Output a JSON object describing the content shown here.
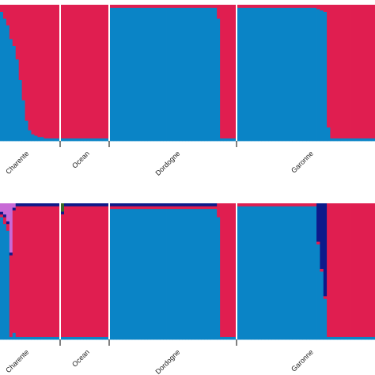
{
  "chart_data": [
    {
      "type": "bar",
      "stacked": true,
      "subtype": "admixture-structure-plot",
      "title": "",
      "xlabel": "",
      "ylabel": "",
      "ylim": [
        0,
        1
      ],
      "grid": false,
      "legend": "none",
      "groups": [
        {
          "label": "Charente",
          "n_individuals": 19
        },
        {
          "label": "Ocean",
          "n_individuals": 15
        },
        {
          "label": "Dordogne",
          "n_individuals": 40
        },
        {
          "label": "Garonne",
          "n_individuals": 40
        }
      ],
      "series": [
        {
          "color": "#0a84c6",
          "values": [
            0.95,
            0.9,
            0.85,
            0.75,
            0.7,
            0.6,
            0.45,
            0.3,
            0.15,
            0.08,
            0.05,
            0.04,
            0.03,
            0.03,
            0.02,
            0.02,
            0.02,
            0.02,
            0.02,
            0.02,
            0.02,
            0.02,
            0.02,
            0.02,
            0.02,
            0.02,
            0.02,
            0.02,
            0.02,
            0.02,
            0.02,
            0.02,
            0.02,
            0.02,
            0.98,
            0.98,
            0.98,
            0.98,
            0.98,
            0.98,
            0.98,
            0.98,
            0.98,
            0.98,
            0.98,
            0.98,
            0.98,
            0.98,
            0.98,
            0.98,
            0.98,
            0.98,
            0.98,
            0.98,
            0.98,
            0.98,
            0.98,
            0.98,
            0.98,
            0.98,
            0.98,
            0.98,
            0.98,
            0.98,
            0.98,
            0.98,
            0.98,
            0.98,
            0.9,
            0.02,
            0.02,
            0.02,
            0.02,
            0.02,
            0.98,
            0.98,
            0.98,
            0.98,
            0.98,
            0.98,
            0.98,
            0.98,
            0.98,
            0.98,
            0.98,
            0.98,
            0.98,
            0.98,
            0.98,
            0.98,
            0.98,
            0.98,
            0.98,
            0.98,
            0.98,
            0.98,
            0.98,
            0.97,
            0.96,
            0.95,
            0.1,
            0.02,
            0.02,
            0.02,
            0.02,
            0.02,
            0.02,
            0.02,
            0.02,
            0.02,
            0.02,
            0.02,
            0.02,
            0.02
          ]
        },
        {
          "color": "#e01e50",
          "values": [
            0.05,
            0.1,
            0.15,
            0.25,
            0.3,
            0.4,
            0.55,
            0.7,
            0.85,
            0.92,
            0.95,
            0.96,
            0.97,
            0.97,
            0.98,
            0.98,
            0.98,
            0.98,
            0.98,
            0.98,
            0.98,
            0.98,
            0.98,
            0.98,
            0.98,
            0.98,
            0.98,
            0.98,
            0.98,
            0.98,
            0.98,
            0.98,
            0.98,
            0.98,
            0.02,
            0.02,
            0.02,
            0.02,
            0.02,
            0.02,
            0.02,
            0.02,
            0.02,
            0.02,
            0.02,
            0.02,
            0.02,
            0.02,
            0.02,
            0.02,
            0.02,
            0.02,
            0.02,
            0.02,
            0.02,
            0.02,
            0.02,
            0.02,
            0.02,
            0.02,
            0.02,
            0.02,
            0.02,
            0.02,
            0.02,
            0.02,
            0.02,
            0.02,
            0.1,
            0.98,
            0.98,
            0.98,
            0.98,
            0.98,
            0.02,
            0.02,
            0.02,
            0.02,
            0.02,
            0.02,
            0.02,
            0.02,
            0.02,
            0.02,
            0.02,
            0.02,
            0.02,
            0.02,
            0.02,
            0.02,
            0.02,
            0.02,
            0.02,
            0.02,
            0.02,
            0.02,
            0.02,
            0.03,
            0.04,
            0.05,
            0.9,
            0.98,
            0.98,
            0.98,
            0.98,
            0.98,
            0.98,
            0.98,
            0.98,
            0.98,
            0.98,
            0.98,
            0.98,
            0.98
          ]
        }
      ]
    },
    {
      "type": "bar",
      "stacked": true,
      "subtype": "admixture-structure-plot",
      "title": "",
      "xlabel": "",
      "ylabel": "",
      "ylim": [
        0,
        1
      ],
      "grid": false,
      "legend": "none",
      "groups": [
        {
          "label": "Charente",
          "n_individuals": 19
        },
        {
          "label": "Ocean",
          "n_individuals": 15
        },
        {
          "label": "Dordogne",
          "n_individuals": 40
        },
        {
          "label": "Garonne",
          "n_individuals": 40
        }
      ],
      "series": [
        {
          "color": "#0a84c6",
          "values": [
            0.9,
            0.85,
            0.8,
            0.02,
            0.05,
            0.02,
            0.02,
            0.02,
            0.02,
            0.02,
            0.02,
            0.02,
            0.02,
            0.02,
            0.02,
            0.02,
            0.02,
            0.02,
            0.02,
            0.02,
            0.02,
            0.02,
            0.02,
            0.02,
            0.02,
            0.02,
            0.02,
            0.02,
            0.02,
            0.02,
            0.02,
            0.02,
            0.02,
            0.02,
            0.98,
            0.98,
            0.98,
            0.98,
            0.98,
            0.98,
            0.98,
            0.98,
            0.98,
            0.98,
            0.98,
            0.98,
            0.98,
            0.98,
            0.98,
            0.98,
            0.98,
            0.98,
            0.98,
            0.98,
            0.98,
            0.98,
            0.98,
            0.98,
            0.98,
            0.98,
            0.98,
            0.98,
            0.98,
            0.98,
            0.98,
            0.98,
            0.98,
            0.98,
            0.9,
            0.02,
            0.02,
            0.02,
            0.02,
            0.02,
            0.98,
            0.98,
            0.98,
            0.98,
            0.98,
            0.98,
            0.98,
            0.98,
            0.98,
            0.98,
            0.98,
            0.98,
            0.98,
            0.98,
            0.98,
            0.98,
            0.98,
            0.98,
            0.98,
            0.98,
            0.98,
            0.98,
            0.98,
            0.7,
            0.5,
            0.3,
            0.02,
            0.02,
            0.02,
            0.02,
            0.02,
            0.02,
            0.02,
            0.02,
            0.02,
            0.02,
            0.02,
            0.02,
            0.02,
            0.02
          ]
        },
        {
          "color": "#e01e50",
          "values": [
            0.02,
            0.05,
            0.05,
            0.6,
            0.9,
            0.98,
            0.98,
            0.98,
            0.98,
            0.98,
            0.98,
            0.98,
            0.98,
            0.98,
            0.98,
            0.98,
            0.98,
            0.98,
            0.98,
            0.92,
            0.98,
            0.98,
            0.98,
            0.98,
            0.98,
            0.98,
            0.98,
            0.98,
            0.98,
            0.98,
            0.98,
            0.98,
            0.98,
            0.98,
            0.02,
            0.02,
            0.02,
            0.02,
            0.02,
            0.02,
            0.02,
            0.02,
            0.02,
            0.02,
            0.02,
            0.02,
            0.02,
            0.02,
            0.02,
            0.02,
            0.02,
            0.02,
            0.02,
            0.02,
            0.02,
            0.02,
            0.02,
            0.02,
            0.02,
            0.02,
            0.02,
            0.02,
            0.02,
            0.02,
            0.02,
            0.02,
            0.02,
            0.02,
            0.1,
            0.98,
            0.98,
            0.98,
            0.98,
            0.98,
            0.02,
            0.02,
            0.02,
            0.02,
            0.02,
            0.02,
            0.02,
            0.02,
            0.02,
            0.02,
            0.02,
            0.02,
            0.02,
            0.02,
            0.02,
            0.02,
            0.02,
            0.02,
            0.02,
            0.02,
            0.02,
            0.02,
            0.02,
            0.02,
            0.02,
            0.02,
            0.98,
            0.98,
            0.98,
            0.98,
            0.98,
            0.98,
            0.98,
            0.98,
            0.98,
            0.98,
            0.98,
            0.98,
            0.98,
            0.98
          ]
        },
        {
          "color": "#0d1a8a",
          "values": [
            0.02,
            0.02,
            0.02,
            0.02,
            0.02,
            0.02,
            0.02,
            0.02,
            0.02,
            0.02,
            0.02,
            0.02,
            0.02,
            0.02,
            0.02,
            0.02,
            0.02,
            0.02,
            0.02,
            0.02,
            0.02,
            0.02,
            0.02,
            0.02,
            0.02,
            0.02,
            0.02,
            0.02,
            0.02,
            0.02,
            0.02,
            0.02,
            0.02,
            0.02,
            0.02,
            0.02,
            0.02,
            0.02,
            0.02,
            0.02,
            0.02,
            0.02,
            0.02,
            0.02,
            0.02,
            0.02,
            0.02,
            0.02,
            0.02,
            0.02,
            0.02,
            0.02,
            0.02,
            0.02,
            0.02,
            0.02,
            0.02,
            0.02,
            0.02,
            0.02,
            0.02,
            0.02,
            0.02,
            0.02,
            0.02,
            0.02,
            0.02,
            0.02,
            0.0,
            0.0,
            0.0,
            0.0,
            0.0,
            0.0,
            0.0,
            0.0,
            0.0,
            0.0,
            0.0,
            0.0,
            0.0,
            0.0,
            0.0,
            0.0,
            0.0,
            0.0,
            0.0,
            0.0,
            0.0,
            0.0,
            0.0,
            0.0,
            0.0,
            0.0,
            0.0,
            0.0,
            0.0,
            0.28,
            0.48,
            0.68,
            0.0,
            0.0,
            0.0,
            0.0,
            0.0,
            0.0,
            0.0,
            0.0,
            0.0,
            0.0,
            0.0,
            0.0,
            0.0,
            0.0
          ]
        },
        {
          "color": "#c86ad6",
          "values": [
            0.06,
            0.08,
            0.13,
            0.36,
            0.03,
            0.0,
            0.0,
            0.0,
            0.0,
            0.0,
            0.0,
            0.0,
            0.0,
            0.0,
            0.0,
            0.0,
            0.0,
            0.0,
            0.0,
            0.0,
            0.0,
            0.0,
            0.0,
            0.0,
            0.0,
            0.0,
            0.0,
            0.0,
            0.0,
            0.0,
            0.0,
            0.0,
            0.0,
            0.0,
            0.0,
            0.0,
            0.0,
            0.0,
            0.0,
            0.0,
            0.0,
            0.0,
            0.0,
            0.0,
            0.0,
            0.0,
            0.0,
            0.0,
            0.0,
            0.0,
            0.0,
            0.0,
            0.0,
            0.0,
            0.0,
            0.0,
            0.0,
            0.0,
            0.0,
            0.0,
            0.0,
            0.0,
            0.0,
            0.0,
            0.0,
            0.0,
            0.0,
            0.0,
            0.0,
            0.0,
            0.0,
            0.0,
            0.0,
            0.0,
            0.0,
            0.0,
            0.0,
            0.0,
            0.0,
            0.0,
            0.0,
            0.0,
            0.0,
            0.0,
            0.0,
            0.0,
            0.0,
            0.0,
            0.0,
            0.0,
            0.0,
            0.0,
            0.0,
            0.0,
            0.0,
            0.0,
            0.0,
            0.0,
            0.0,
            0.0,
            0.0,
            0.0,
            0.0,
            0.0,
            0.0,
            0.0,
            0.0,
            0.0,
            0.0,
            0.0,
            0.0,
            0.0,
            0.0,
            0.0
          ]
        },
        {
          "color": "#3a6b2a",
          "values": [
            0.0,
            0.0,
            0.0,
            0.0,
            0.0,
            0.0,
            0.0,
            0.0,
            0.0,
            0.0,
            0.0,
            0.0,
            0.0,
            0.0,
            0.0,
            0.0,
            0.0,
            0.0,
            0.0,
            0.06,
            0.0,
            0.0,
            0.0,
            0.0,
            0.0,
            0.0,
            0.0,
            0.0,
            0.0,
            0.0,
            0.0,
            0.0,
            0.0,
            0.0,
            0.0,
            0.0,
            0.0,
            0.0,
            0.0,
            0.0,
            0.0,
            0.0,
            0.0,
            0.0,
            0.0,
            0.0,
            0.0,
            0.0,
            0.0,
            0.0,
            0.0,
            0.0,
            0.0,
            0.0,
            0.0,
            0.0,
            0.0,
            0.0,
            0.0,
            0.0,
            0.0,
            0.0,
            0.0,
            0.0,
            0.0,
            0.0,
            0.0,
            0.0,
            0.0,
            0.0,
            0.0,
            0.0,
            0.0,
            0.0,
            0.0,
            0.0,
            0.0,
            0.0,
            0.0,
            0.0,
            0.0,
            0.0,
            0.0,
            0.0,
            0.0,
            0.0,
            0.0,
            0.0,
            0.0,
            0.0,
            0.0,
            0.0,
            0.0,
            0.0,
            0.0,
            0.0,
            0.0,
            0.0,
            0.0,
            0.0,
            0.0,
            0.0,
            0.0,
            0.0,
            0.0,
            0.0,
            0.0,
            0.0,
            0.0,
            0.0,
            0.0,
            0.0,
            0.0,
            0.0
          ]
        }
      ]
    }
  ]
}
